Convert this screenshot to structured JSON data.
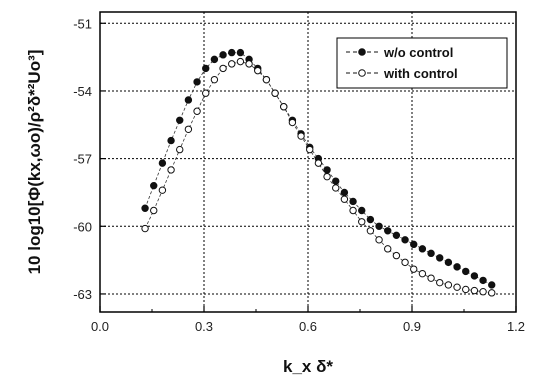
{
  "chart_data": {
    "type": "scatter",
    "xlabel": "k_x δ*",
    "ylabel": "10 log10[Φ(kx,ωo)/ρ²δ*²Uo³]",
    "xlim": [
      0.0,
      1.2
    ],
    "ylim": [
      -63.8,
      -50.5
    ],
    "xticks": [
      0.0,
      0.3,
      0.6,
      0.9,
      1.2
    ],
    "xtick_labels": [
      "0.0",
      "0.3",
      "0.6",
      "0.9",
      "1.2"
    ],
    "yticks": [
      -63,
      -60,
      -57,
      -54,
      -51
    ],
    "ytick_labels": [
      "-63",
      "-60",
      "-57",
      "-54",
      "-51"
    ],
    "grid": true,
    "legend_position": "top-right",
    "series": [
      {
        "name": "w/o control",
        "marker": "filled-circle",
        "x": [
          0.13,
          0.155,
          0.18,
          0.205,
          0.23,
          0.255,
          0.28,
          0.305,
          0.33,
          0.355,
          0.38,
          0.405,
          0.43,
          0.455,
          0.48,
          0.505,
          0.53,
          0.555,
          0.58,
          0.605,
          0.63,
          0.655,
          0.68,
          0.705,
          0.73,
          0.755,
          0.78,
          0.805,
          0.83,
          0.855,
          0.88,
          0.905,
          0.93,
          0.955,
          0.98,
          1.005,
          1.03,
          1.055,
          1.08,
          1.105,
          1.13
        ],
        "values": [
          -59.2,
          -58.2,
          -57.2,
          -56.2,
          -55.3,
          -54.4,
          -53.6,
          -53.0,
          -52.6,
          -52.4,
          -52.3,
          -52.3,
          -52.6,
          -53.0,
          -53.5,
          -54.1,
          -54.7,
          -55.3,
          -55.9,
          -56.5,
          -57.0,
          -57.5,
          -58.0,
          -58.5,
          -58.9,
          -59.3,
          -59.7,
          -60.0,
          -60.2,
          -60.4,
          -60.6,
          -60.8,
          -61.0,
          -61.2,
          -61.4,
          -61.6,
          -61.8,
          -62.0,
          -62.2,
          -62.4,
          -62.6
        ]
      },
      {
        "name": "with control",
        "marker": "open-circle",
        "x": [
          0.13,
          0.155,
          0.18,
          0.205,
          0.23,
          0.255,
          0.28,
          0.305,
          0.33,
          0.355,
          0.38,
          0.405,
          0.43,
          0.455,
          0.48,
          0.505,
          0.53,
          0.555,
          0.58,
          0.605,
          0.63,
          0.655,
          0.68,
          0.705,
          0.73,
          0.755,
          0.78,
          0.805,
          0.83,
          0.855,
          0.88,
          0.905,
          0.93,
          0.955,
          0.98,
          1.005,
          1.03,
          1.055,
          1.08,
          1.105,
          1.13
        ],
        "values": [
          -60.1,
          -59.3,
          -58.4,
          -57.5,
          -56.6,
          -55.7,
          -54.9,
          -54.1,
          -53.5,
          -53.0,
          -52.8,
          -52.7,
          -52.8,
          -53.1,
          -53.5,
          -54.1,
          -54.7,
          -55.4,
          -56.0,
          -56.6,
          -57.2,
          -57.8,
          -58.3,
          -58.8,
          -59.3,
          -59.8,
          -60.2,
          -60.6,
          -61.0,
          -61.3,
          -61.6,
          -61.9,
          -62.1,
          -62.3,
          -62.5,
          -62.6,
          -62.7,
          -62.8,
          -62.85,
          -62.9,
          -62.95
        ]
      }
    ]
  }
}
